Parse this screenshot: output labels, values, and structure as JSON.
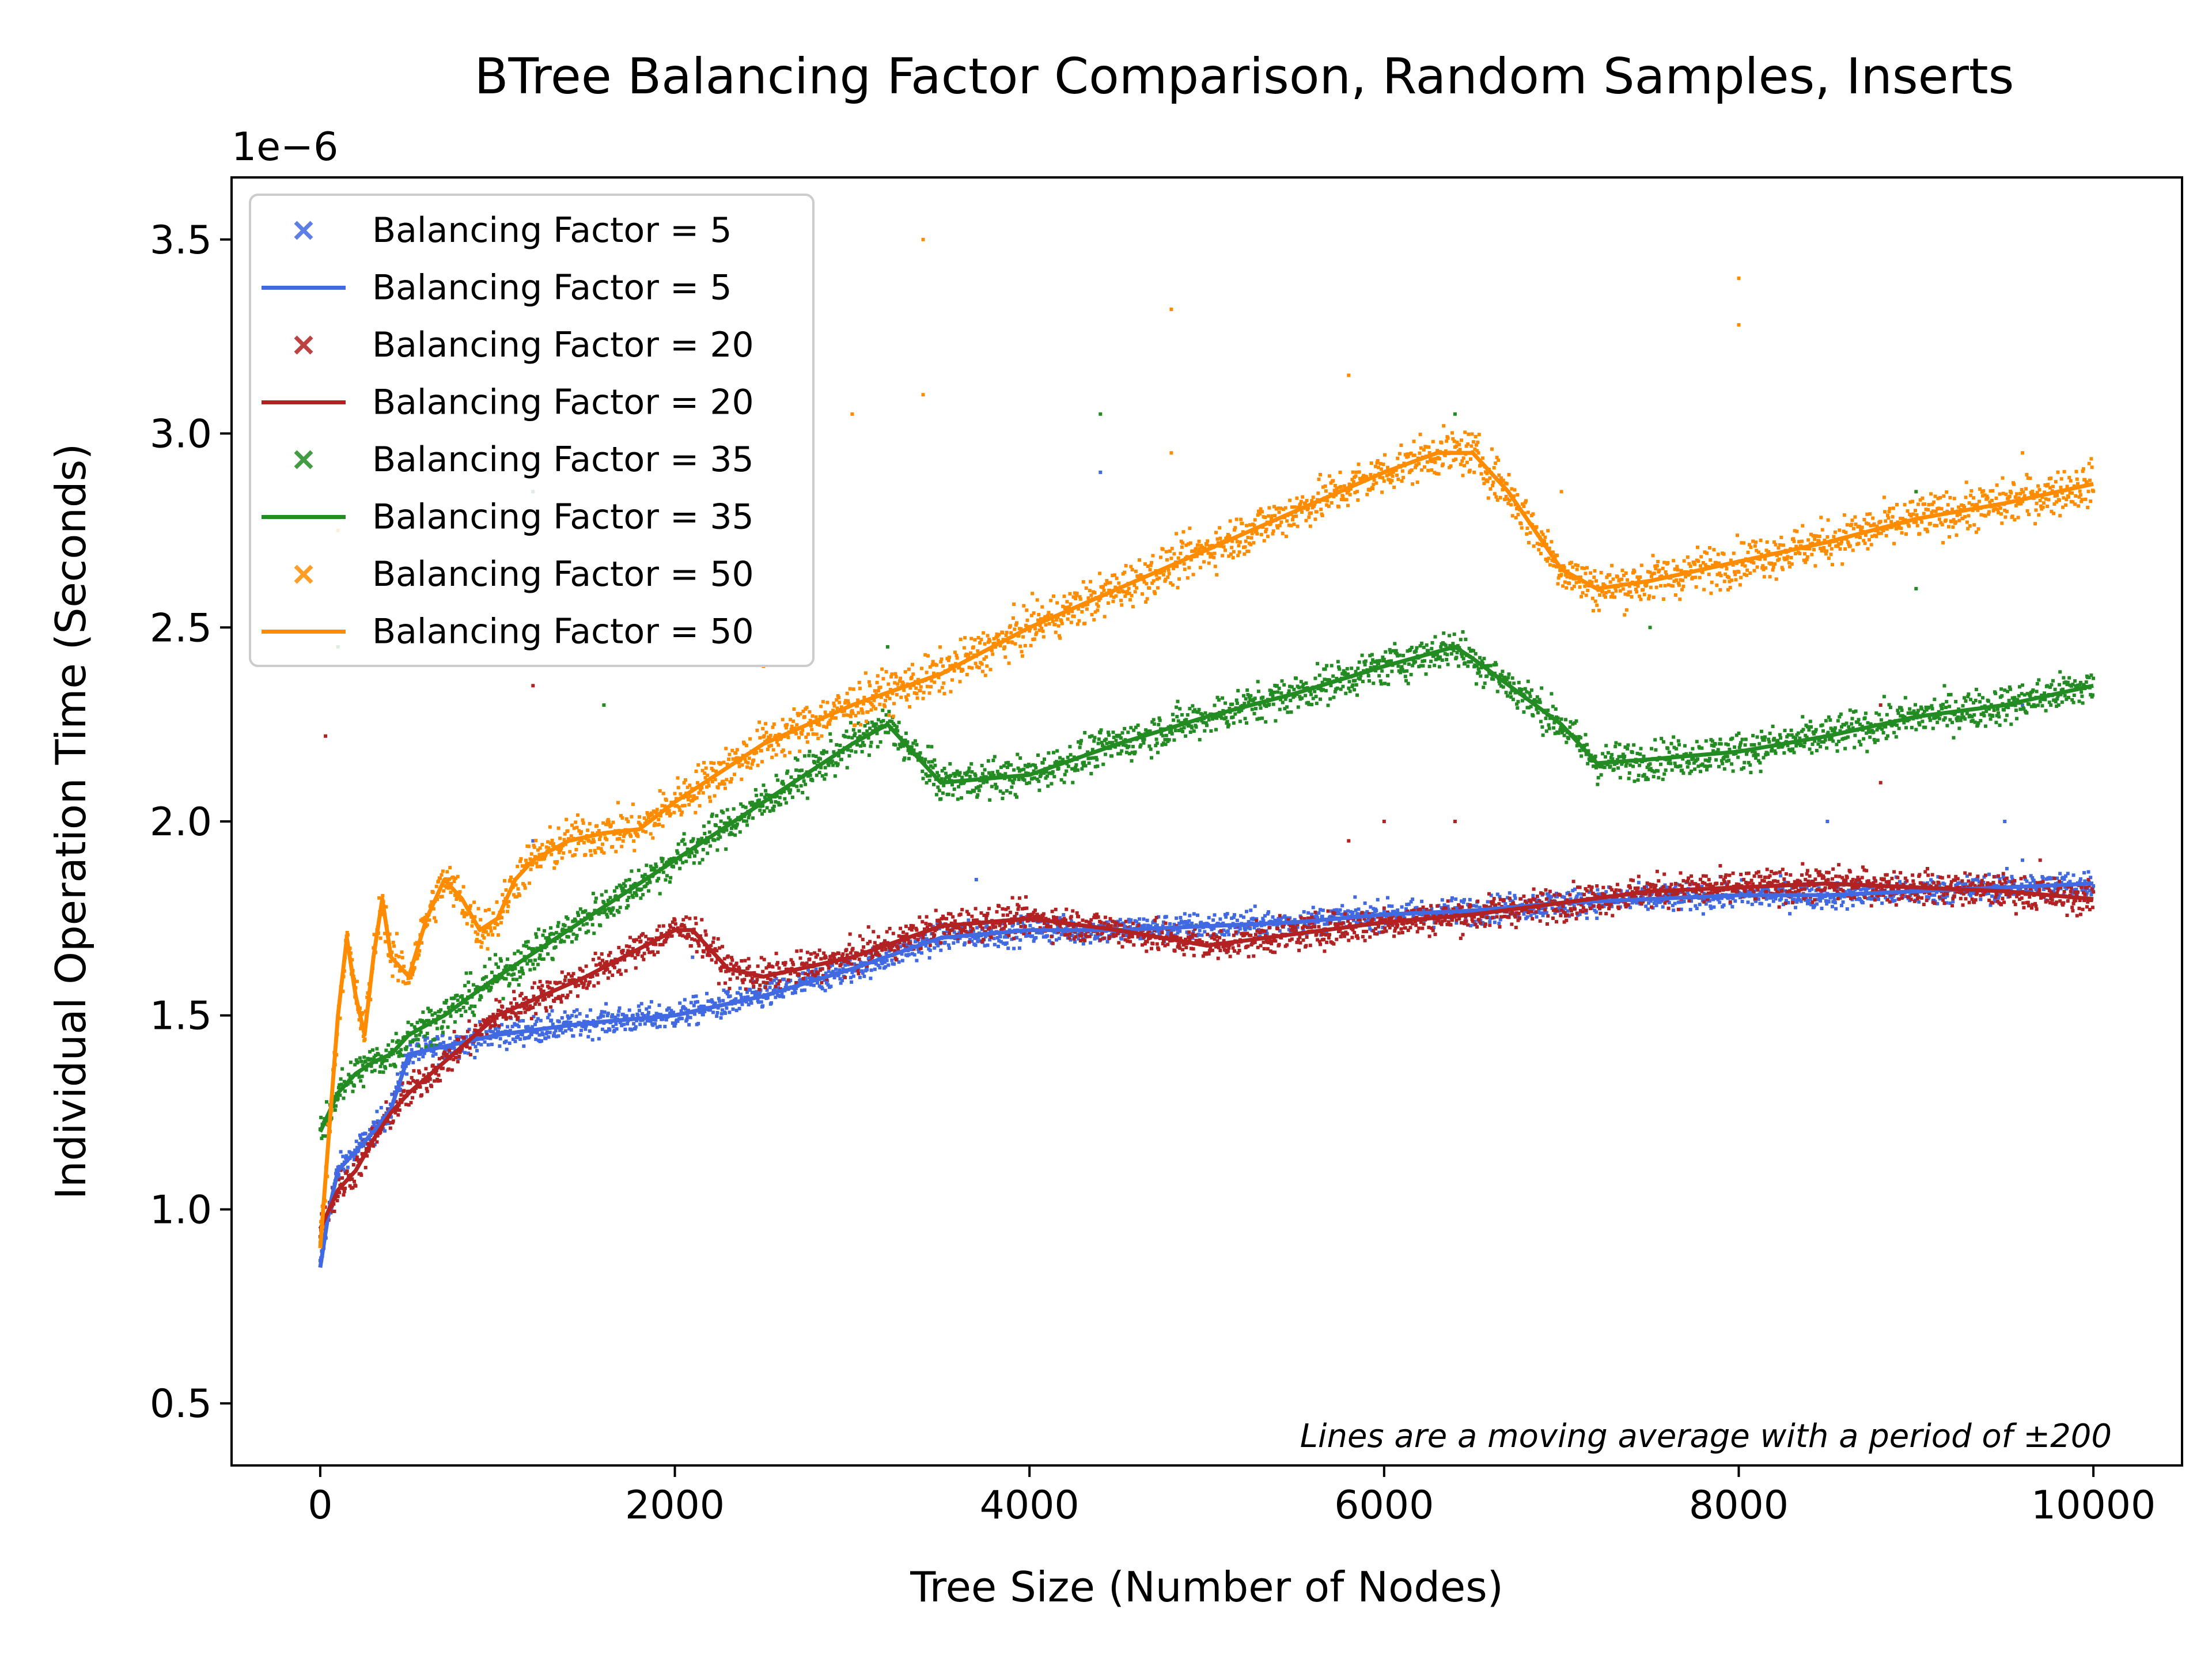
{
  "chart_data": {
    "type": "scatter",
    "title": "BTree Balancing Factor Comparison, Random Samples, Inserts",
    "xlabel": "Tree Size (Number of Nodes)",
    "ylabel": "Individual Operation Time (Seconds)",
    "y_offset_label": "1e−6",
    "xlim": [
      -500,
      10500
    ],
    "ylim": [
      0.34,
      3.66
    ],
    "x_ticks": [
      0,
      2000,
      4000,
      6000,
      8000,
      10000
    ],
    "x_tick_labels": [
      "0",
      "2000",
      "4000",
      "6000",
      "8000",
      "10000"
    ],
    "y_ticks": [
      0.5,
      1.0,
      1.5,
      2.0,
      2.5,
      3.0,
      3.5
    ],
    "y_tick_labels": [
      "0.5",
      "1.0",
      "1.5",
      "2.0",
      "2.5",
      "3.0",
      "3.5"
    ],
    "grid": false,
    "legend_position": "top-left",
    "legend": [
      {
        "marker": "x",
        "label": "Balancing Factor = 5",
        "color": "#4169e1"
      },
      {
        "marker": "line",
        "label": "Balancing Factor = 5",
        "color": "#4169e1"
      },
      {
        "marker": "x",
        "label": "Balancing Factor = 20",
        "color": "#b22222"
      },
      {
        "marker": "line",
        "label": "Balancing Factor = 20",
        "color": "#b22222"
      },
      {
        "marker": "x",
        "label": "Balancing Factor = 35",
        "color": "#228b22"
      },
      {
        "marker": "line",
        "label": "Balancing Factor = 35",
        "color": "#228b22"
      },
      {
        "marker": "x",
        "label": "Balancing Factor = 50",
        "color": "#ff8c00"
      },
      {
        "marker": "line",
        "label": "Balancing Factor = 50",
        "color": "#ff8c00"
      }
    ],
    "annotation": "Lines are a moving average with a period of ±200",
    "series": [
      {
        "name": "Balancing Factor = 5",
        "color": "#4169e1",
        "spread": 0.025,
        "moving_average": {
          "x": [
            0,
            50,
            100,
            200,
            300,
            400,
            500,
            1000,
            1500,
            2000,
            2500,
            3000,
            3500,
            4000,
            4500,
            5000,
            5500,
            6000,
            6500,
            7000,
            7500,
            8000,
            8500,
            9000,
            9500,
            10000
          ],
          "y": [
            0.85,
            1.0,
            1.1,
            1.15,
            1.2,
            1.26,
            1.4,
            1.45,
            1.48,
            1.5,
            1.55,
            1.62,
            1.7,
            1.72,
            1.72,
            1.73,
            1.74,
            1.76,
            1.77,
            1.79,
            1.8,
            1.81,
            1.81,
            1.82,
            1.83,
            1.84
          ]
        },
        "outliers": [
          [
            4400,
            2.9
          ],
          [
            8500,
            2.0
          ],
          [
            9600,
            2.3
          ],
          [
            9600,
            1.9
          ],
          [
            3700,
            1.85
          ],
          [
            1200,
            1.95
          ],
          [
            2100,
            1.65
          ],
          [
            9500,
            2.0
          ]
        ]
      },
      {
        "name": "Balancing Factor = 20",
        "color": "#b22222",
        "spread": 0.03,
        "moving_average": {
          "x": [
            0,
            100,
            200,
            300,
            400,
            500,
            750,
            1000,
            1500,
            2000,
            2100,
            2300,
            2500,
            3000,
            3500,
            4000,
            4500,
            5000,
            5500,
            6000,
            6500,
            7000,
            7500,
            8000,
            8500,
            9000,
            9500,
            10000
          ],
          "y": [
            0.95,
            1.05,
            1.1,
            1.18,
            1.25,
            1.3,
            1.4,
            1.5,
            1.6,
            1.72,
            1.72,
            1.62,
            1.6,
            1.65,
            1.73,
            1.75,
            1.72,
            1.68,
            1.71,
            1.74,
            1.76,
            1.79,
            1.82,
            1.83,
            1.84,
            1.83,
            1.82,
            1.8
          ]
        },
        "outliers": [
          [
            30,
            2.22
          ],
          [
            1200,
            2.35
          ],
          [
            6000,
            2.0
          ],
          [
            6400,
            2.0
          ],
          [
            8800,
            2.1
          ],
          [
            8800,
            2.3
          ],
          [
            5800,
            1.95
          ],
          [
            9700,
            1.9
          ]
        ]
      },
      {
        "name": "Balancing Factor = 35",
        "color": "#228b22",
        "spread": 0.035,
        "moving_average": {
          "x": [
            0,
            50,
            100,
            200,
            300,
            400,
            500,
            700,
            1000,
            1500,
            2000,
            2500,
            3000,
            3200,
            3300,
            3500,
            4000,
            4500,
            5000,
            5500,
            6000,
            6400,
            6500,
            7000,
            7200,
            7500,
            8000,
            8500,
            9000,
            9500,
            10000
          ],
          "y": [
            1.2,
            1.25,
            1.3,
            1.35,
            1.38,
            1.4,
            1.45,
            1.5,
            1.6,
            1.75,
            1.9,
            2.05,
            2.2,
            2.25,
            2.2,
            2.1,
            2.12,
            2.2,
            2.27,
            2.33,
            2.4,
            2.45,
            2.42,
            2.25,
            2.15,
            2.16,
            2.18,
            2.22,
            2.27,
            2.3,
            2.35
          ]
        },
        "outliers": [
          [
            4400,
            3.05
          ],
          [
            6400,
            3.05
          ],
          [
            1200,
            2.85
          ],
          [
            100,
            2.45
          ],
          [
            3200,
            2.45
          ],
          [
            9000,
            2.6
          ],
          [
            9000,
            2.85
          ],
          [
            7500,
            2.5
          ],
          [
            1600,
            2.3
          ]
        ]
      },
      {
        "name": "Balancing Factor = 50",
        "color": "#ff8c00",
        "spread": 0.04,
        "moving_average": {
          "x": [
            0,
            50,
            100,
            150,
            200,
            250,
            300,
            350,
            400,
            500,
            600,
            700,
            800,
            900,
            1000,
            1100,
            1200,
            1400,
            1600,
            1800,
            2000,
            2500,
            3000,
            3500,
            4000,
            4500,
            5000,
            5500,
            6000,
            6300,
            6500,
            6700,
            7000,
            7200,
            7500,
            8000,
            8500,
            9000,
            9500,
            10000
          ],
          "y": [
            0.9,
            1.2,
            1.5,
            1.7,
            1.55,
            1.45,
            1.65,
            1.8,
            1.65,
            1.6,
            1.75,
            1.85,
            1.8,
            1.72,
            1.75,
            1.85,
            1.9,
            1.95,
            1.97,
            1.98,
            2.05,
            2.2,
            2.3,
            2.38,
            2.5,
            2.6,
            2.7,
            2.8,
            2.9,
            2.95,
            2.95,
            2.85,
            2.65,
            2.6,
            2.62,
            2.67,
            2.72,
            2.78,
            2.82,
            2.87
          ]
        },
        "outliers": [
          [
            3400,
            3.5
          ],
          [
            8000,
            3.4
          ],
          [
            8000,
            3.28
          ],
          [
            4800,
            3.32
          ],
          [
            5800,
            3.15
          ],
          [
            3000,
            3.05
          ],
          [
            3400,
            3.1
          ],
          [
            4800,
            2.95
          ],
          [
            1200,
            2.95
          ],
          [
            2500,
            2.4
          ],
          [
            100,
            2.75
          ],
          [
            9600,
            2.95
          ],
          [
            7000,
            2.85
          ]
        ]
      }
    ]
  }
}
